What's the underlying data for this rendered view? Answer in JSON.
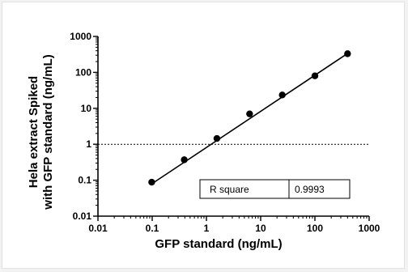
{
  "chart_data": {
    "type": "scatter",
    "xlabel": "GFP standard (ng/mL)",
    "ylabel_lines": [
      "Hela extract Spiked",
      "with GFP standard (ng/mL)"
    ],
    "xscale": "log",
    "yscale": "log",
    "xlim": [
      0.01,
      1000
    ],
    "ylim": [
      0.01,
      1000
    ],
    "x_ticks": [
      "0.01",
      "0.1",
      "1",
      "10",
      "100",
      "1000"
    ],
    "y_ticks": [
      "0.01",
      "0.1",
      "1",
      "10",
      "100",
      "1000"
    ],
    "grid": false,
    "series": [
      {
        "x": [
          0.098,
          0.39,
          1.56,
          6.25,
          25,
          100,
          400
        ],
        "y": [
          0.088,
          0.37,
          1.45,
          7.0,
          23.5,
          80,
          330
        ]
      }
    ],
    "fit_line": {
      "x": [
        0.098,
        400
      ],
      "y": [
        0.079,
        335
      ]
    },
    "reference_line_y": 1,
    "stats": {
      "label": "R square",
      "value": "0.9993"
    }
  }
}
